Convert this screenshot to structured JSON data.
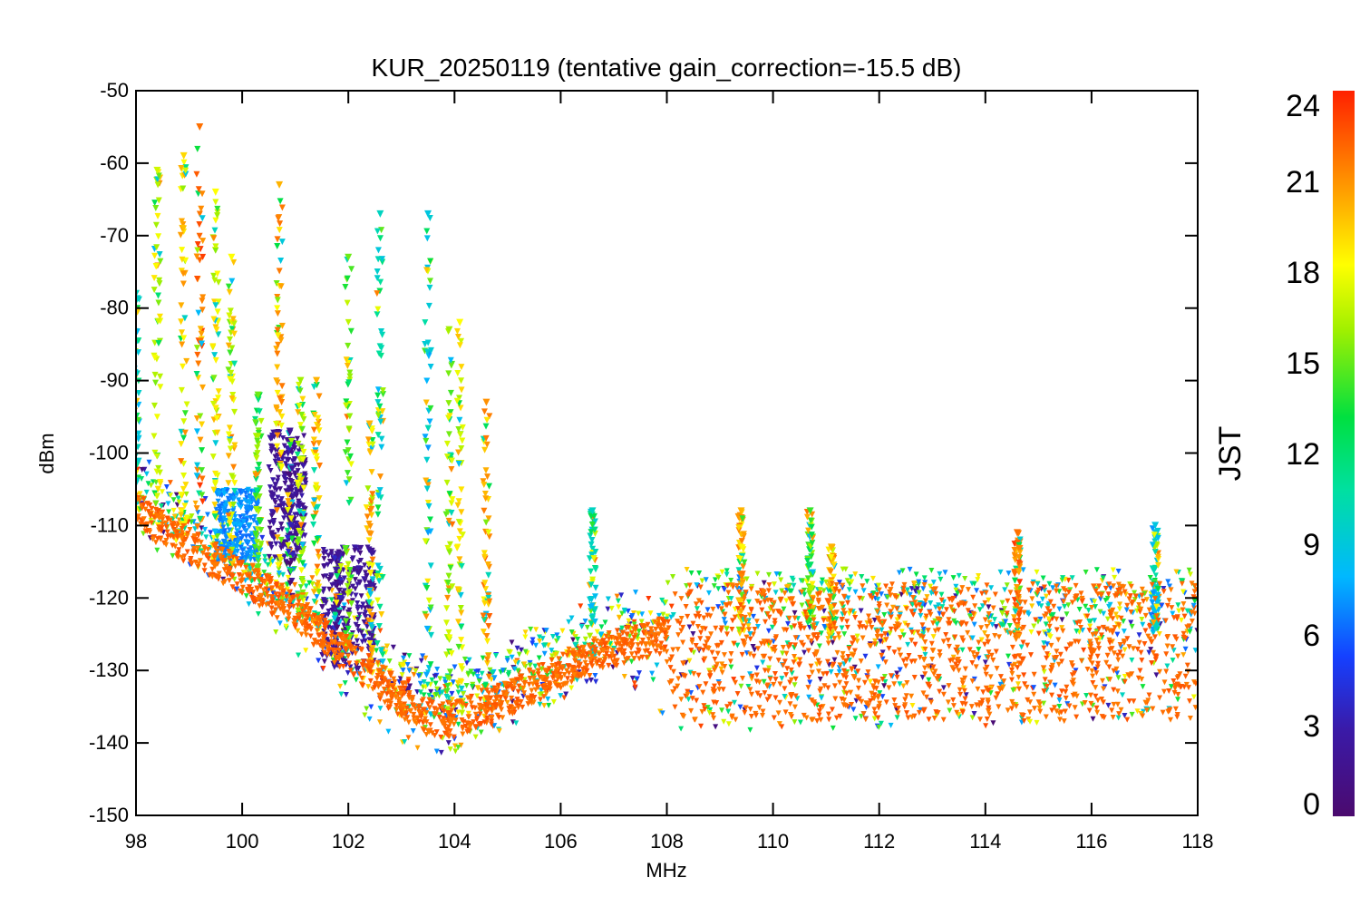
{
  "chart_data": {
    "type": "scatter",
    "title": "KUR_20250119 (tentative gain_correction=-15.5 dB)",
    "xlabel": "MHz",
    "ylabel": "dBm",
    "xlim": [
      98,
      118
    ],
    "ylim": [
      -150,
      -50
    ],
    "x_ticks": [
      "98",
      "100",
      "102",
      "104",
      "106",
      "108",
      "110",
      "112",
      "114",
      "116",
      "118"
    ],
    "y_ticks": [
      "-50",
      "-60",
      "-70",
      "-80",
      "-90",
      "-100",
      "-110",
      "-120",
      "-130",
      "-140",
      "-150"
    ],
    "grid": false,
    "colorbar": {
      "label": "JST",
      "range": [
        0,
        24
      ],
      "ticks": [
        "24",
        "21",
        "18",
        "15",
        "12",
        "9",
        "6",
        "3",
        "0"
      ],
      "colormap": "rainbow (purple to red)"
    },
    "series": [
      {
        "baseline": [
          [
            98,
            -108
          ],
          [
            99,
            -113
          ],
          [
            100,
            -117
          ],
          [
            101,
            -122
          ],
          [
            102,
            -128
          ],
          [
            103,
            -134
          ],
          [
            103.5,
            -136.5
          ],
          [
            104,
            -137
          ],
          [
            105,
            -134
          ],
          [
            106,
            -130
          ],
          [
            107,
            -127
          ],
          [
            108,
            -125
          ],
          [
            110,
            -125
          ],
          [
            112,
            -126
          ],
          [
            114,
            -126
          ],
          [
            116,
            -125
          ],
          [
            118,
            -125
          ]
        ],
        "noise_floor_min": [
          [
            98,
            -112
          ],
          [
            100,
            -120
          ],
          [
            102,
            -135
          ],
          [
            103,
            -140
          ],
          [
            103.8,
            -142
          ],
          [
            105,
            -138
          ],
          [
            106,
            -134
          ],
          [
            107,
            -131
          ],
          [
            108,
            -138
          ],
          [
            110,
            -139
          ],
          [
            112,
            -138
          ],
          [
            114,
            -138
          ],
          [
            116,
            -137
          ],
          [
            118,
            -136
          ]
        ],
        "peaks": [
          {
            "freq": 98.0,
            "max_dbm": -78,
            "hour": 10
          },
          {
            "freq": 98.4,
            "max_dbm": -61,
            "hour": 17
          },
          {
            "freq": 98.9,
            "max_dbm": -59,
            "hour": 19
          },
          {
            "freq": 99.2,
            "max_dbm": -55,
            "hour": 22
          },
          {
            "freq": 99.5,
            "max_dbm": -64,
            "hour": 18
          },
          {
            "freq": 99.8,
            "max_dbm": -73,
            "hour": 18
          },
          {
            "freq": 100.3,
            "max_dbm": -92,
            "hour": 15
          },
          {
            "freq": 100.7,
            "max_dbm": -63,
            "hour": 20
          },
          {
            "freq": 100.9,
            "max_dbm": -97,
            "hour": 2
          },
          {
            "freq": 101.1,
            "max_dbm": -90,
            "hour": 16
          },
          {
            "freq": 101.4,
            "max_dbm": -90,
            "hour": 20
          },
          {
            "freq": 101.8,
            "max_dbm": -114,
            "hour": 2
          },
          {
            "freq": 102.0,
            "max_dbm": -73,
            "hour": 15
          },
          {
            "freq": 102.4,
            "max_dbm": -96,
            "hour": 20
          },
          {
            "freq": 102.6,
            "max_dbm": -67,
            "hour": 10
          },
          {
            "freq": 103.5,
            "max_dbm": -67,
            "hour": 9
          },
          {
            "freq": 103.9,
            "max_dbm": -83,
            "hour": 16
          },
          {
            "freq": 104.1,
            "max_dbm": -82,
            "hour": 18
          },
          {
            "freq": 104.6,
            "max_dbm": -93,
            "hour": 21
          },
          {
            "freq": 106.6,
            "max_dbm": -108,
            "hour": 10
          },
          {
            "freq": 109.4,
            "max_dbm": -108,
            "hour": 20
          },
          {
            "freq": 110.7,
            "max_dbm": -108,
            "hour": 14
          },
          {
            "freq": 111.1,
            "max_dbm": -113,
            "hour": 20
          },
          {
            "freq": 114.6,
            "max_dbm": -111,
            "hour": 22
          },
          {
            "freq": 117.2,
            "max_dbm": -110,
            "hour": 9
          }
        ],
        "dense_band": {
          "from_mhz": 108,
          "to_mhz": 118,
          "top_dbm": -118,
          "bottom_dbm": -137,
          "dominant_hour": 23
        },
        "cluster_low_hours": [
          {
            "from_mhz": 100.5,
            "to_mhz": 101.2,
            "top_dbm": -97,
            "bottom_dbm": -115,
            "hour": 2
          },
          {
            "from_mhz": 101.5,
            "to_mhz": 102.5,
            "top_dbm": -113,
            "bottom_dbm": -130,
            "hour": 2
          },
          {
            "from_mhz": 99.5,
            "to_mhz": 100.3,
            "top_dbm": -105,
            "bottom_dbm": -115,
            "hour": 7
          }
        ]
      }
    ]
  }
}
